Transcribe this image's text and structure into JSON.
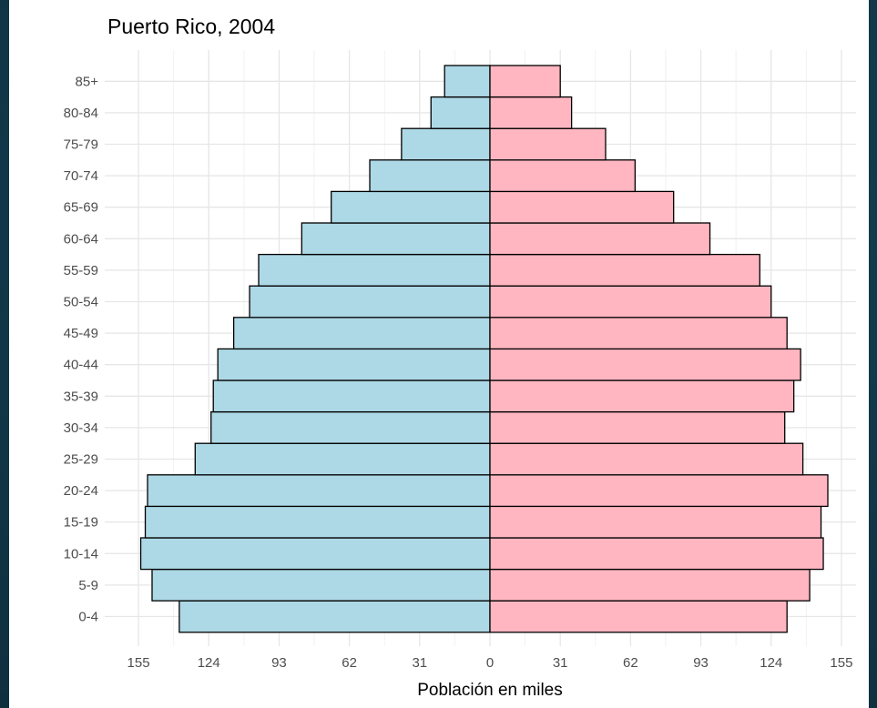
{
  "chart_data": {
    "type": "bar",
    "orientation": "horizontal",
    "subtype": "population-pyramid",
    "title": "Puerto Rico, 2004",
    "xlabel": "Población en miles",
    "ylabel": "",
    "xlim": [
      -162,
      162
    ],
    "x_ticks": [
      -155,
      -124,
      -93,
      -62,
      -31,
      0,
      31,
      62,
      93,
      124,
      155
    ],
    "x_tick_labels": [
      "155",
      "124",
      "93",
      "62",
      "31",
      "0",
      "31",
      "62",
      "93",
      "124",
      "155"
    ],
    "grid": true,
    "legend": "none",
    "categories": [
      "0-4",
      "5-9",
      "10-14",
      "15-19",
      "20-24",
      "25-29",
      "30-34",
      "35-39",
      "40-44",
      "45-49",
      "50-54",
      "55-59",
      "60-64",
      "65-69",
      "70-74",
      "75-79",
      "80-84",
      "85+"
    ],
    "series": [
      {
        "side": "left",
        "color": "#add8e6",
        "values": [
          137,
          149,
          154,
          152,
          151,
          130,
          123,
          122,
          120,
          113,
          106,
          102,
          83,
          70,
          53,
          39,
          26,
          20
        ]
      },
      {
        "side": "right",
        "color": "#ffb6c1",
        "values": [
          131,
          141,
          147,
          146,
          149,
          138,
          130,
          134,
          137,
          131,
          124,
          119,
          97,
          81,
          64,
          51,
          36,
          31
        ]
      }
    ]
  },
  "colors": {
    "background_outer": "#143e50",
    "panel": "#ffffff",
    "grid": "#ebebeb",
    "bar_outline": "#000000"
  }
}
